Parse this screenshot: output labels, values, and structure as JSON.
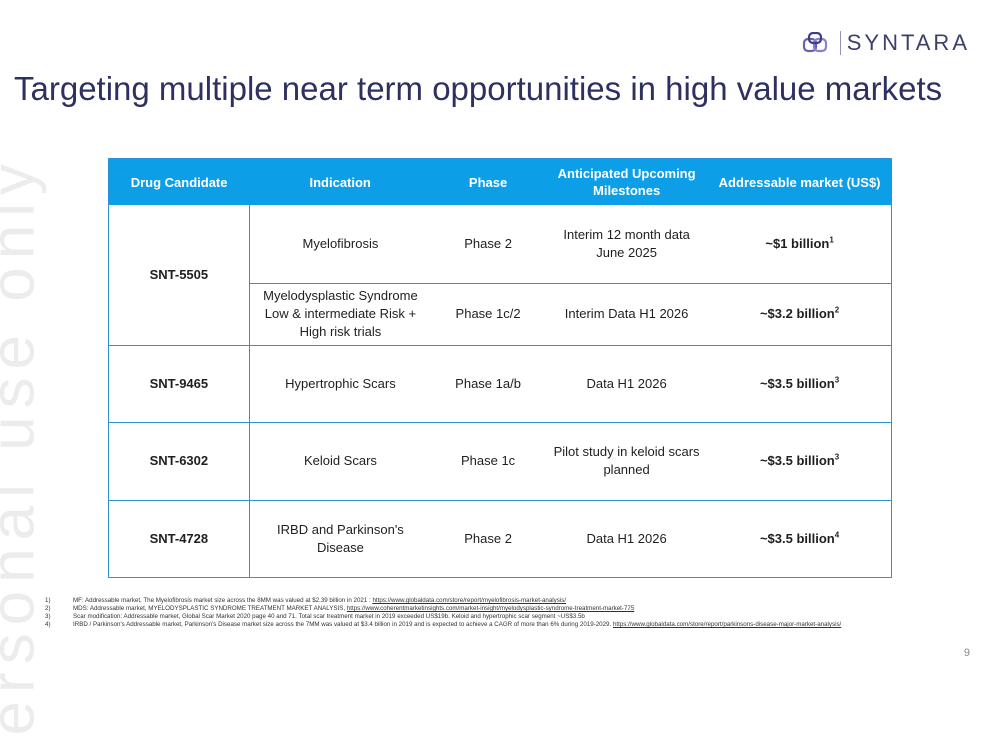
{
  "brand": {
    "name": "SYNTARA",
    "accent": "#0d9ee8",
    "title_color": "#2e3160"
  },
  "title": "Targeting multiple near term opportunities in high value markets",
  "watermark": "ersonal use only",
  "table": {
    "headers": [
      "Drug Candidate",
      "Indication",
      "Phase",
      "Anticipated Upcoming Milestones",
      "Addressable market (US$)"
    ],
    "rows": [
      {
        "candidate": "SNT-5505",
        "indication": "Myelofibrosis",
        "phase": "Phase 2",
        "milestone": "Interim 12 month data June 2025",
        "market": "~$1 billion",
        "ref": "1"
      },
      {
        "candidate": "",
        "indication": "Myelodysplastic Syndrome Low & intermediate Risk + High risk trials",
        "phase": "Phase 1c/2",
        "milestone": "Interim Data H1 2026",
        "market": "~$3.2 billion",
        "ref": "2"
      },
      {
        "candidate": "SNT-9465",
        "indication": "Hypertrophic Scars",
        "phase": "Phase 1a/b",
        "milestone": "Data H1 2026",
        "market": "~$3.5 billion",
        "ref": "3"
      },
      {
        "candidate": "SNT-6302",
        "indication": "Keloid Scars",
        "phase": "Phase 1c",
        "milestone": "Pilot study in keloid scars planned",
        "market": "~$3.5 billion",
        "ref": "3"
      },
      {
        "candidate": "SNT-4728",
        "indication": "IRBD and Parkinson's Disease",
        "phase": "Phase 2",
        "milestone": "Data H1 2026",
        "market": "~$3.5 billion",
        "ref": "4"
      }
    ]
  },
  "footnotes": [
    {
      "num": "1)",
      "text": "MF: Addressable market, The Myelofibrosis market size across the 8MM was valued at $2.39 billion in 2021 : ",
      "link": "https://www.globaldata.com/store/report/myelofibrosis-market-analysis/"
    },
    {
      "num": "2)",
      "text": "MDS: Addressable market, MYELODYSPLASTIC SYNDROME TREATMENT MARKET ANALYSIS, ",
      "link": "https://www.coherentmarketinsights.com/market-insight/myelodysplastic-syndrome-treatment-market-775"
    },
    {
      "num": "3)",
      "text": "Scar modification: Addressable market, Global Scar Market 2020 page 40 and 71. Total scar treatment market in 2019 exceeded US$19b. Keloid and hypertrophic scar segment ~US$3.5b",
      "link": ""
    },
    {
      "num": "4)",
      "text": "IRBD / Parkinson's Addressable market, Parkinson's Disease market size across the 7MM was valued at $3.4 billion in 2019 and is expected to achieve a CAGR of more than 6% during 2019-2029. ",
      "link": "https://www.globaldata.com/store/report/parkinsons-disease-major-market-analysis/"
    }
  ],
  "page_number": "9"
}
